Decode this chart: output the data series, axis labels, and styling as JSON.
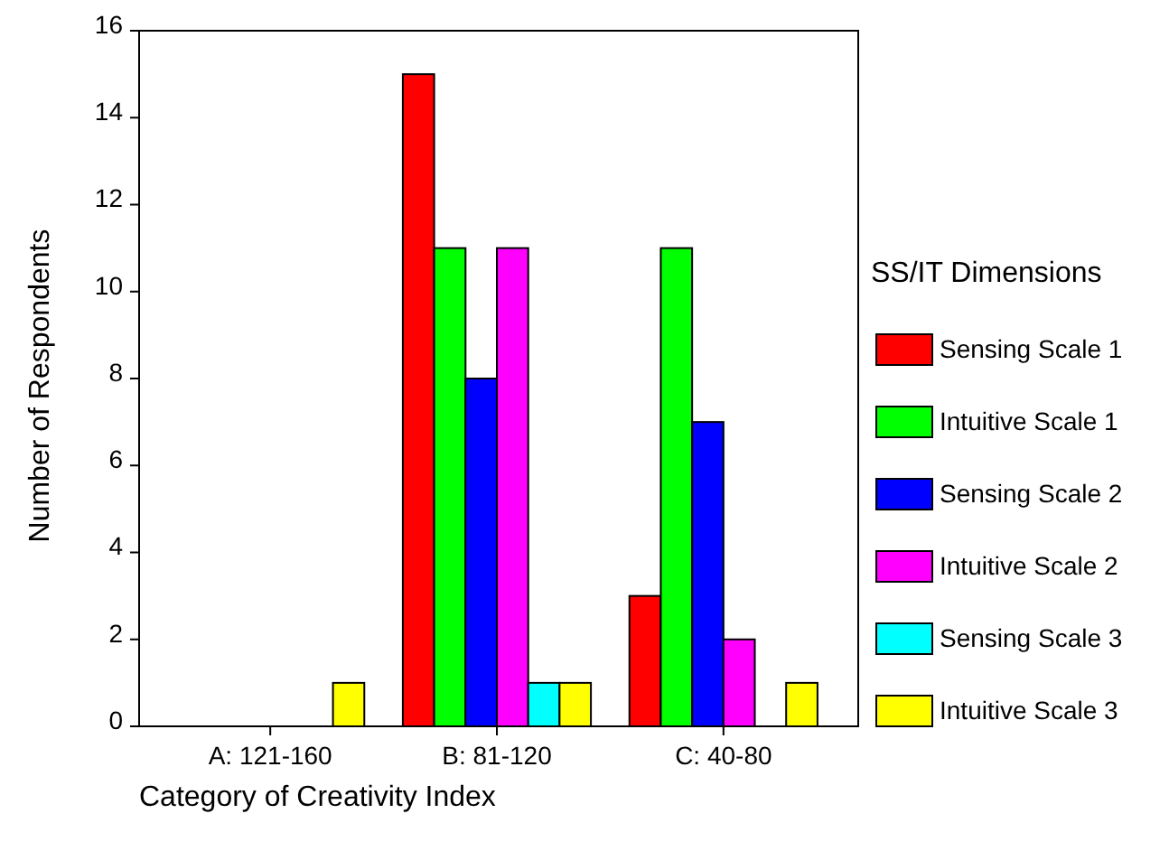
{
  "chart_data": {
    "type": "bar",
    "xlabel": "Category of Creativity Index",
    "ylabel": "Number of Respondents",
    "legend_title": "SS/IT Dimensions",
    "categories": [
      "A: 121-160",
      "B: 81-120",
      "C: 40-80"
    ],
    "series": [
      {
        "name": "Sensing Scale 1",
        "color": "#ff0000",
        "values": [
          0,
          15,
          3
        ]
      },
      {
        "name": "Intuitive Scale 1",
        "color": "#00ff00",
        "values": [
          0,
          11,
          11
        ]
      },
      {
        "name": "Sensing Scale 2",
        "color": "#0000ff",
        "values": [
          0,
          8,
          7
        ]
      },
      {
        "name": "Intuitive Scale 2",
        "color": "#ff00ff",
        "values": [
          0,
          11,
          2
        ]
      },
      {
        "name": "Sensing Scale 3",
        "color": "#00ffff",
        "values": [
          0,
          1,
          0
        ]
      },
      {
        "name": "Intuitive Scale 3",
        "color": "#ffff00",
        "values": [
          1,
          1,
          1
        ]
      }
    ],
    "ylim": [
      0,
      16
    ],
    "yticks": [
      0,
      2,
      4,
      6,
      8,
      10,
      12,
      14,
      16
    ],
    "grid": false,
    "legend": "right"
  }
}
